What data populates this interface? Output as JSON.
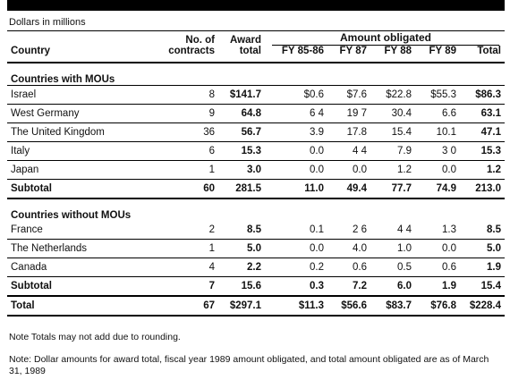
{
  "units": "Dollars in millions",
  "headers": {
    "country": "Country",
    "contracts": "No. of contracts",
    "contracts_l1": "No. of",
    "contracts_l2": "contracts",
    "award_l1": "Award",
    "award_l2": "total",
    "amount_obligated": "Amount obligated",
    "fy8586": "FY 85-86",
    "fy87": "FY 87",
    "fy88": "FY 88",
    "fy89": "FY 89",
    "total": "Total"
  },
  "sections": [
    {
      "title": "Countries with MOUs",
      "rows": [
        {
          "country": "Israel",
          "contracts": "8",
          "award": "$141.7",
          "fy8586": "$0.6",
          "fy87": "$7.6",
          "fy88": "$22.8",
          "fy89": "$55.3",
          "total": "$86.3"
        },
        {
          "country": "West Germany",
          "contracts": "9",
          "award": "64.8",
          "fy8586": "6 4",
          "fy87": "19 7",
          "fy88": "30.4",
          "fy89": "6.6",
          "total": "63.1"
        },
        {
          "country": "The United Kingdom",
          "contracts": "36",
          "award": "56.7",
          "fy8586": "3.9",
          "fy87": "17.8",
          "fy88": "15.4",
          "fy89": "10.1",
          "total": "47.1"
        },
        {
          "country": "Italy",
          "contracts": "6",
          "award": "15.3",
          "fy8586": "0.0",
          "fy87": "4 4",
          "fy88": "7.9",
          "fy89": "3 0",
          "total": "15.3"
        },
        {
          "country": "Japan",
          "contracts": "1",
          "award": "3.0",
          "fy8586": "0.0",
          "fy87": "0.0",
          "fy88": "1.2",
          "fy89": "0.0",
          "total": "1.2"
        }
      ],
      "subtotal": {
        "label": "Subtotal",
        "contracts": "60",
        "award": "281.5",
        "fy8586": "11.0",
        "fy87": "49.4",
        "fy88": "77.7",
        "fy89": "74.9",
        "total": "213.0"
      }
    },
    {
      "title": "Countries without MOUs",
      "rows": [
        {
          "country": "France",
          "contracts": "2",
          "award": "8.5",
          "fy8586": "0.1",
          "fy87": "2 6",
          "fy88": "4 4",
          "fy89": "1.3",
          "total": "8.5"
        },
        {
          "country": "The Netherlands",
          "contracts": "1",
          "award": "5.0",
          "fy8586": "0.0",
          "fy87": "4.0",
          "fy88": "1.0",
          "fy89": "0.0",
          "total": "5.0"
        },
        {
          "country": "Canada",
          "contracts": "4",
          "award": "2.2",
          "fy8586": "0.2",
          "fy87": "0.6",
          "fy88": "0.5",
          "fy89": "0.6",
          "total": "1.9"
        }
      ],
      "subtotal": {
        "label": "Subtotal",
        "contracts": "7",
        "award": "15.6",
        "fy8586": "0.3",
        "fy87": "7.2",
        "fy88": "6.0",
        "fy89": "1.9",
        "total": "15.4"
      }
    }
  ],
  "grand_total": {
    "label": "Total",
    "contracts": "67",
    "award": "$297.1",
    "fy8586": "$11.3",
    "fy87": "$56.6",
    "fy88": "$83.7",
    "fy89": "$76.8",
    "total": "$228.4"
  },
  "notes": [
    "Note Totals may not add due to rounding.",
    "Note: Dollar amounts for award total, fiscal year 1989 amount obligated, and total amount obligated are as of March 31, 1989"
  ]
}
